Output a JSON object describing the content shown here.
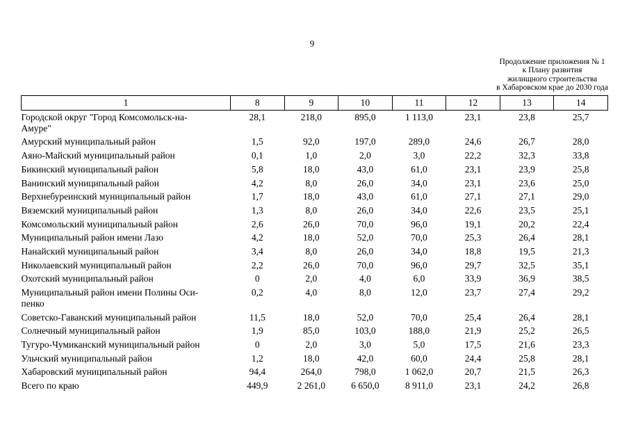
{
  "page": {
    "number": "9"
  },
  "appendix_note": {
    "lines": [
      "Продолжение приложения № 1",
      "к Плану развития",
      "жилищного строительства",
      "в Хабаровском крае до 2030 года"
    ]
  },
  "table": {
    "columns": [
      "1",
      "8",
      "9",
      "10",
      "11",
      "12",
      "13",
      "14"
    ],
    "rows": [
      {
        "name": "Городской округ \"Город Комсомольск-на-\nАмуре\"",
        "values": [
          "28,1",
          "218,0",
          "895,0",
          "1 113,0",
          "23,1",
          "23,8",
          "25,7"
        ]
      },
      {
        "name": "Амурский муниципальный район",
        "values": [
          "1,5",
          "92,0",
          "197,0",
          "289,0",
          "24,6",
          "26,7",
          "28,0"
        ]
      },
      {
        "name": "Аяно-Майский муниципальный район",
        "values": [
          "0,1",
          "1,0",
          "2,0",
          "3,0",
          "22,2",
          "32,3",
          "33,8"
        ]
      },
      {
        "name": "Бикинский муниципальный район",
        "values": [
          "5,8",
          "18,0",
          "43,0",
          "61,0",
          "23,1",
          "23,9",
          "25,8"
        ]
      },
      {
        "name": "Ванинский муниципальный район",
        "values": [
          "4,2",
          "8,0",
          "26,0",
          "34,0",
          "23,1",
          "23,6",
          "25,0"
        ]
      },
      {
        "name": "Верхнебуреинский муниципальный район",
        "values": [
          "1,7",
          "18,0",
          "43,0",
          "61,0",
          "27,1",
          "27,1",
          "29,0"
        ]
      },
      {
        "name": "Вяземский муниципальный район",
        "values": [
          "1,3",
          "8,0",
          "26,0",
          "34,0",
          "22,6",
          "23,5",
          "25,1"
        ]
      },
      {
        "name": "Комсомольский муниципальный район",
        "values": [
          "2,6",
          "26,0",
          "70,0",
          "96,0",
          "19,1",
          "20,2",
          "22,4"
        ]
      },
      {
        "name": "Муниципальный район имени Лазо",
        "values": [
          "4,2",
          "18,0",
          "52,0",
          "70,0",
          "25,3",
          "26,4",
          "28,1"
        ]
      },
      {
        "name": "Нанайский муниципальный район",
        "values": [
          "3,4",
          "8,0",
          "26,0",
          "34,0",
          "18,8",
          "19,5",
          "21,3"
        ]
      },
      {
        "name": "Николаевский муниципальный район",
        "values": [
          "2,2",
          "26,0",
          "70,0",
          "96,0",
          "29,7",
          "32,5",
          "35,1"
        ]
      },
      {
        "name": "Охотский муниципальный район",
        "values": [
          "0",
          "2,0",
          "4,0",
          "6,0",
          "33,9",
          "36,9",
          "38,5"
        ]
      },
      {
        "name": "Муниципальный район имени Полины Оси-\nпенко",
        "values": [
          "0,2",
          "4,0",
          "8,0",
          "12,0",
          "23,7",
          "27,4",
          "29,2"
        ]
      },
      {
        "name": "Советско-Гаванский муниципальный район",
        "values": [
          "11,5",
          "18,0",
          "52,0",
          "70,0",
          "25,4",
          "26,4",
          "28,1"
        ]
      },
      {
        "name": "Солнечный муниципальный район",
        "values": [
          "1,9",
          "85,0",
          "103,0",
          "188,0",
          "21,9",
          "25,2",
          "26,5"
        ]
      },
      {
        "name": "Тугуро-Чумиканский муниципальный район",
        "values": [
          "0",
          "2,0",
          "3,0",
          "5,0",
          "17,5",
          "21,6",
          "23,3"
        ]
      },
      {
        "name": "Ульчский муниципальный район",
        "values": [
          "1,2",
          "18,0",
          "42,0",
          "60,0",
          "24,4",
          "25,8",
          "28,1"
        ]
      },
      {
        "name": "Хабаровский муниципальный район",
        "values": [
          "94,4",
          "264,0",
          "798,0",
          "1 062,0",
          "20,7",
          "21,5",
          "26,3"
        ]
      },
      {
        "name": "Всего по краю",
        "values": [
          "449,9",
          "2 261,0",
          "6 650,0",
          "8 911,0",
          "23,1",
          "24,2",
          "26,8"
        ]
      }
    ]
  }
}
